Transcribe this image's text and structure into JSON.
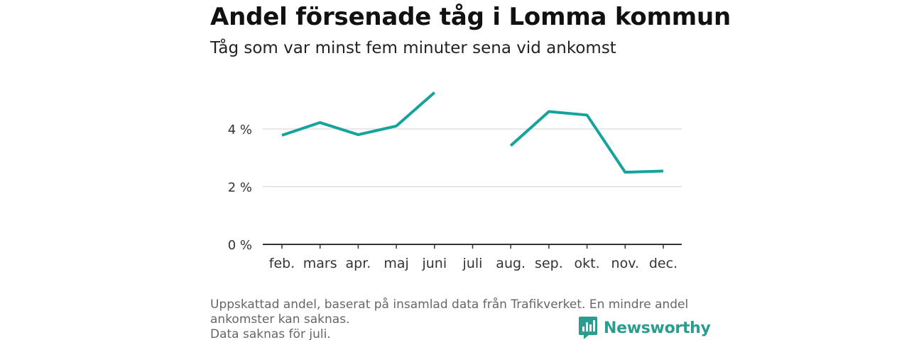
{
  "title": "Andel försenade tåg i Lomma kommun",
  "subtitle": "Tåg som var minst fem minuter sena vid ankomst",
  "footnote": {
    "line1": "Uppskattad andel, baserat på insamlad data från Trafikverket. En mindre andel",
    "line2": "ankomster kan saknas.",
    "line3": "Data saknas för juli."
  },
  "brand": {
    "name": "Newsworthy",
    "icon": "newsworthy-logo-icon",
    "color": "#2a9d8f"
  },
  "chart_data": {
    "type": "line",
    "categories": [
      "feb.",
      "mars",
      "apr.",
      "maj",
      "juni",
      "juli",
      "aug.",
      "sep.",
      "okt.",
      "nov.",
      "dec."
    ],
    "series": [
      {
        "values": [
          3.78,
          4.22,
          3.8,
          4.1,
          5.26,
          null,
          3.42,
          4.6,
          4.48,
          2.5,
          2.54
        ],
        "color": "#16a39b"
      }
    ],
    "yticks": [
      0,
      2,
      4
    ],
    "ytick_labels": [
      "0 %",
      "2 %",
      "4 %"
    ],
    "ylim": [
      0,
      5.6
    ],
    "grid": true,
    "xlabel": "",
    "ylabel": ""
  }
}
